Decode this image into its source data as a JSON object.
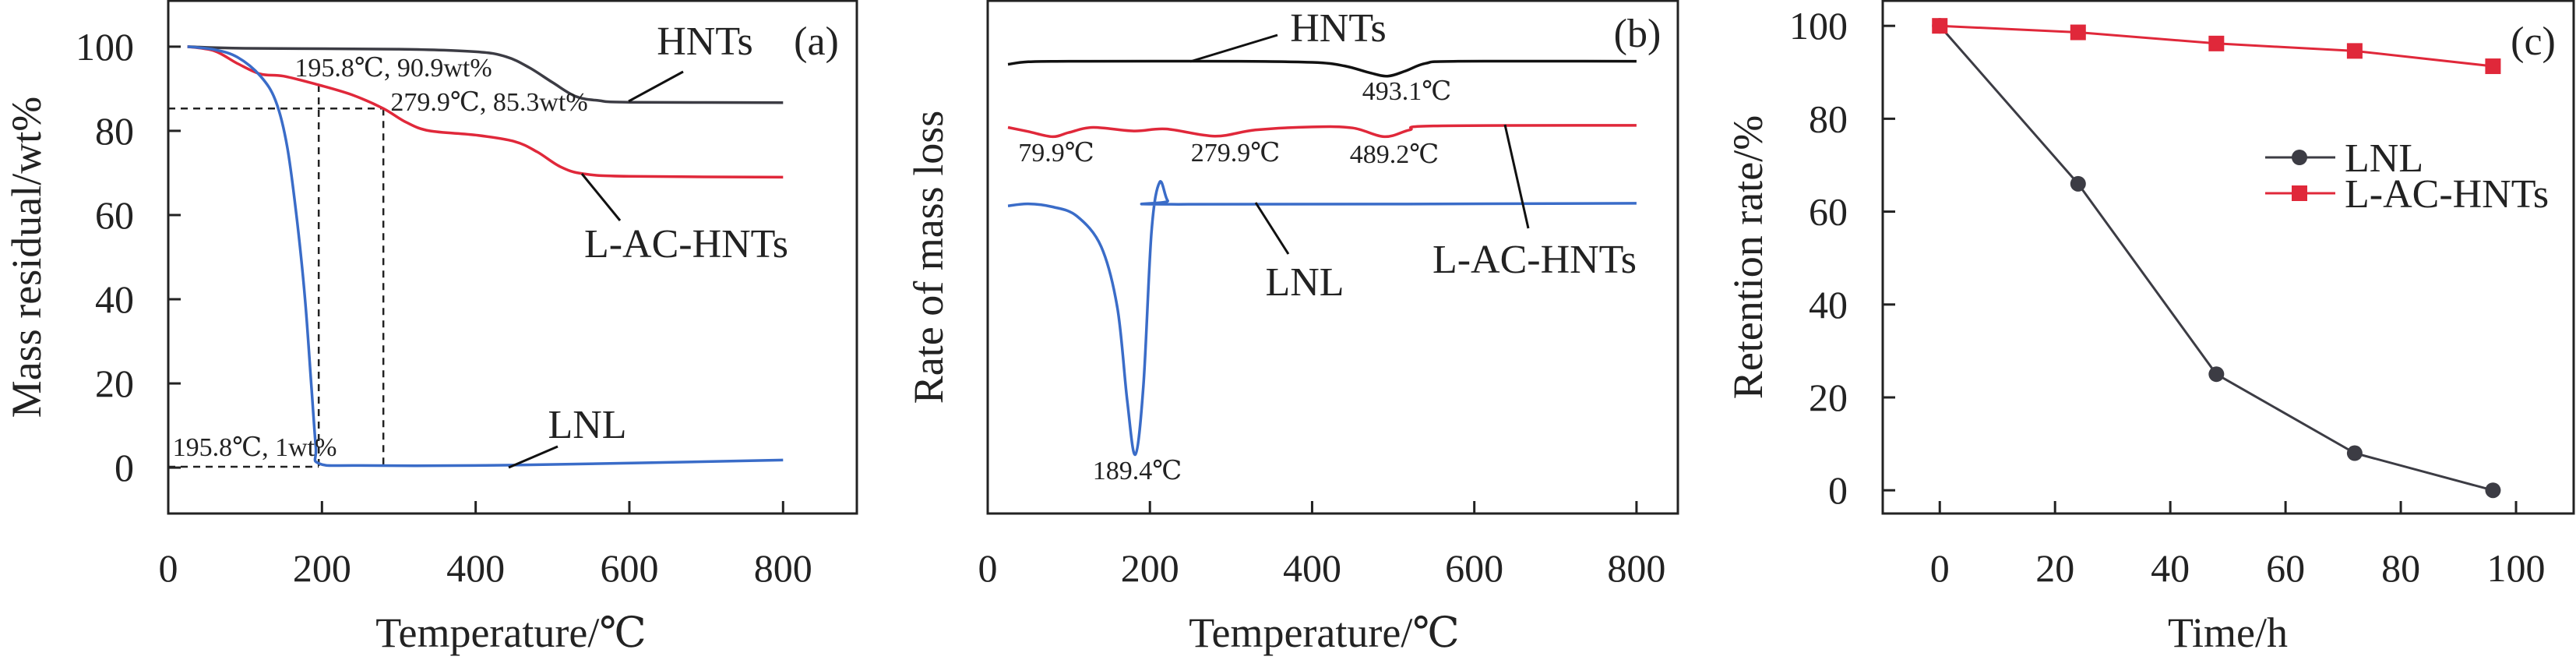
{
  "chart_data": [
    {
      "type": "line",
      "panel_label": "(a)",
      "xlabel": "Temperature/℃",
      "ylabel": "Mass residual/wt%",
      "xlim": [
        0,
        896
      ],
      "ylim": [
        -10.9,
        110.9
      ],
      "xticks": [
        0,
        200,
        400,
        600,
        800
      ],
      "yticks": [
        0,
        20,
        40,
        60,
        80,
        100
      ],
      "series": [
        {
          "name": "HNTs",
          "color": "#3c3c44",
          "points": [
            [
              25,
              100
            ],
            [
              100,
              99.6
            ],
            [
              300,
              99.4
            ],
            [
              400,
              98.8
            ],
            [
              440,
              97.6
            ],
            [
              470,
              95
            ],
            [
              500,
              91.5
            ],
            [
              530,
              88.2
            ],
            [
              560,
              87.2
            ],
            [
              600,
              86.8
            ],
            [
              800,
              86.7
            ]
          ]
        },
        {
          "name": "L-AC-HNTs",
          "color": "#e0283a",
          "points": [
            [
              25,
              100
            ],
            [
              60,
              99
            ],
            [
              90,
              96
            ],
            [
              120,
              93.5
            ],
            [
              150,
              93
            ],
            [
              195.8,
              90.9
            ],
            [
              240,
              88.5
            ],
            [
              279.9,
              85.3
            ],
            [
              310,
              82
            ],
            [
              340,
              80
            ],
            [
              400,
              79
            ],
            [
              450,
              77.5
            ],
            [
              480,
              75
            ],
            [
              510,
              71.5
            ],
            [
              540,
              69.8
            ],
            [
              600,
              69.2
            ],
            [
              800,
              69
            ]
          ]
        },
        {
          "name": "LNL",
          "color": "#3a6cc8",
          "points": [
            [
              25,
              100
            ],
            [
              60,
              99.3
            ],
            [
              90,
              97.5
            ],
            [
              120,
              93
            ],
            [
              140,
              87
            ],
            [
              155,
              76
            ],
            [
              168,
              58
            ],
            [
              178,
              40
            ],
            [
              186,
              20
            ],
            [
              192,
              5
            ],
            [
              196,
              1
            ],
            [
              250,
              0.5
            ],
            [
              450,
              0.6
            ],
            [
              800,
              1.8
            ]
          ]
        }
      ],
      "reference_lines": [
        {
          "from": [
            0,
            85.3
          ],
          "to": [
            279.9,
            85.3
          ]
        },
        {
          "from": [
            195.8,
            90.9
          ],
          "to": [
            195.8,
            0
          ]
        },
        {
          "from": [
            279.9,
            85.3
          ],
          "to": [
            279.9,
            0
          ]
        },
        {
          "from": [
            0,
            0.2
          ],
          "to": [
            195.8,
            0.2
          ]
        }
      ],
      "annotations": [
        "HNTs",
        "L-AC-HNTs",
        "LNL",
        "195.8℃, 90.9wt%",
        "279.9℃, 85.3wt%",
        "195.8℃, 1wt%"
      ]
    },
    {
      "type": "line",
      "panel_label": "(b)",
      "xlabel": "Temperature/℃",
      "ylabel": "Rate of mass loss",
      "xlim": [
        0,
        851
      ],
      "ylim": [
        0,
        100
      ],
      "xticks": [
        0,
        200,
        400,
        600,
        800
      ],
      "yticks": [],
      "series": [
        {
          "name": "HNTs",
          "color": "#111111",
          "points": [
            [
              25,
              87.6
            ],
            [
              50,
              88.1
            ],
            [
              100,
              88.2
            ],
            [
              300,
              88.2
            ],
            [
              400,
              88
            ],
            [
              440,
              87.3
            ],
            [
              470,
              86
            ],
            [
              493.1,
              85.3
            ],
            [
              515,
              86.3
            ],
            [
              540,
              87.8
            ],
            [
              580,
              88.2
            ],
            [
              800,
              88.2
            ]
          ]
        },
        {
          "name": "L-AC-HNTs",
          "color": "#e0283a",
          "points": [
            [
              25,
              75.3
            ],
            [
              50,
              74.5
            ],
            [
              79.9,
              73.5
            ],
            [
              100,
              74.3
            ],
            [
              130,
              75.3
            ],
            [
              180,
              74.6
            ],
            [
              220,
              75
            ],
            [
              279.9,
              73.6
            ],
            [
              330,
              74.8
            ],
            [
              400,
              75.4
            ],
            [
              450,
              75.2
            ],
            [
              489.2,
              73.5
            ],
            [
              520,
              74.8
            ],
            [
              550,
              75.6
            ],
            [
              800,
              75.7
            ]
          ]
        },
        {
          "name": "LNL",
          "color": "#3a6cc8",
          "points": [
            [
              25,
              60
            ],
            [
              50,
              60.4
            ],
            [
              80,
              59.8
            ],
            [
              110,
              58
            ],
            [
              140,
              52
            ],
            [
              160,
              40
            ],
            [
              172,
              22
            ],
            [
              182,
              11.5
            ],
            [
              192,
              25
            ],
            [
              202,
              55
            ],
            [
              212,
              64.6
            ],
            [
              222,
              61
            ],
            [
              235,
              60.3
            ],
            [
              800,
              60.5
            ]
          ]
        }
      ],
      "annotations": [
        "HNTs",
        "L-AC-HNTs",
        "LNL",
        "493.1℃",
        "79.9℃",
        "279.9℃",
        "489.2℃",
        "189.4℃"
      ]
    },
    {
      "type": "line",
      "panel_label": "(c)",
      "xlabel": "Time/h",
      "ylabel": "Retention rate/%",
      "xlim": [
        -9.9,
        110
      ],
      "ylim": [
        -5,
        105.4
      ],
      "xticks": [
        0,
        20,
        40,
        60,
        80,
        100
      ],
      "yticks": [
        0,
        20,
        40,
        60,
        80,
        100
      ],
      "legend_position": "right",
      "series": [
        {
          "name": "LNL",
          "color": "#3c3c44",
          "marker": "circle",
          "points": [
            [
              0,
              100
            ],
            [
              24,
              66
            ],
            [
              48,
              25
            ],
            [
              72,
              8
            ],
            [
              96,
              0
            ]
          ]
        },
        {
          "name": "L-AC-HNTs",
          "color": "#e0283a",
          "marker": "square",
          "points": [
            [
              0,
              100
            ],
            [
              24,
              98.6
            ],
            [
              48,
              96.2
            ],
            [
              72,
              94.6
            ],
            [
              96,
              91.3
            ]
          ]
        }
      ]
    }
  ]
}
